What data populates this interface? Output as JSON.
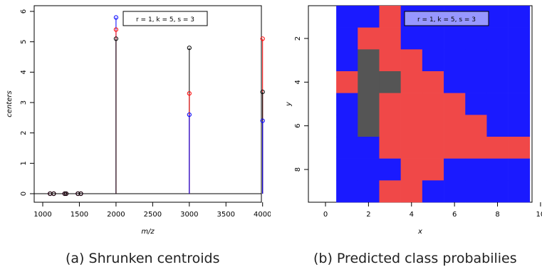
{
  "captions": {
    "left": "(a) Shrunken centroids",
    "right": "(b) Predicted class probabilies"
  },
  "chart_data": [
    {
      "type": "scatter",
      "title": "",
      "legend_label": "r = 1, k = 5, s = 3",
      "xlabel": "m/z",
      "ylabel": "centers",
      "xlim": [
        1000,
        4100
      ],
      "ylim": [
        0,
        6
      ],
      "x_ticks": [
        1000,
        1500,
        2000,
        2500,
        3000,
        3500,
        4000
      ],
      "y_ticks": [
        0,
        1,
        2,
        3,
        4,
        5,
        6
      ],
      "baseline": 0,
      "series": [
        {
          "color": "#0000ff",
          "x": [
            1100,
            1150,
            1300,
            1320,
            1480,
            1520,
            2000,
            3000,
            4000
          ],
          "values": [
            0,
            0,
            0,
            0,
            0,
            0,
            5.8,
            2.6,
            2.4
          ]
        },
        {
          "color": "#ff0000",
          "x": [
            1100,
            1150,
            1300,
            1320,
            1480,
            1520,
            2000,
            3000,
            4000
          ],
          "values": [
            0,
            0,
            0,
            0,
            0,
            0,
            5.4,
            3.3,
            5.1
          ]
        },
        {
          "color": "#000000",
          "x": [
            1100,
            1150,
            1300,
            1320,
            1480,
            1520,
            2000,
            3000,
            4000
          ],
          "values": [
            0,
            0,
            0,
            0,
            0,
            0,
            5.1,
            4.8,
            3.35
          ]
        }
      ]
    },
    {
      "type": "heatmap",
      "title": "",
      "legend_label": "r = 1, k = 5, s = 3",
      "xlabel": "x",
      "ylabel": "y",
      "xlim": [
        0,
        10
      ],
      "ylim": [
        9.5,
        0.5
      ],
      "x_ticks": [
        0,
        2,
        4,
        6,
        8,
        10
      ],
      "y_ticks": [
        2,
        4,
        6,
        8
      ],
      "background": "#ffffff",
      "colors": [
        "#1a1aff",
        "#f04848",
        "#555555"
      ],
      "grid": [
        [
          0,
          0,
          1,
          0,
          0,
          0,
          0,
          0,
          0
        ],
        [
          0,
          1,
          1,
          0,
          0,
          0,
          0,
          0,
          0
        ],
        [
          0,
          2,
          1,
          1,
          0,
          0,
          0,
          0,
          0
        ],
        [
          1,
          2,
          2,
          1,
          1,
          0,
          0,
          0,
          0
        ],
        [
          0,
          2,
          1,
          1,
          1,
          1,
          0,
          0,
          0
        ],
        [
          0,
          2,
          1,
          1,
          1,
          1,
          1,
          0,
          0
        ],
        [
          0,
          0,
          1,
          1,
          1,
          1,
          1,
          1,
          1
        ],
        [
          0,
          0,
          0,
          1,
          1,
          0,
          0,
          0,
          0
        ],
        [
          0,
          0,
          1,
          1,
          0,
          0,
          0,
          0,
          0
        ]
      ]
    }
  ]
}
